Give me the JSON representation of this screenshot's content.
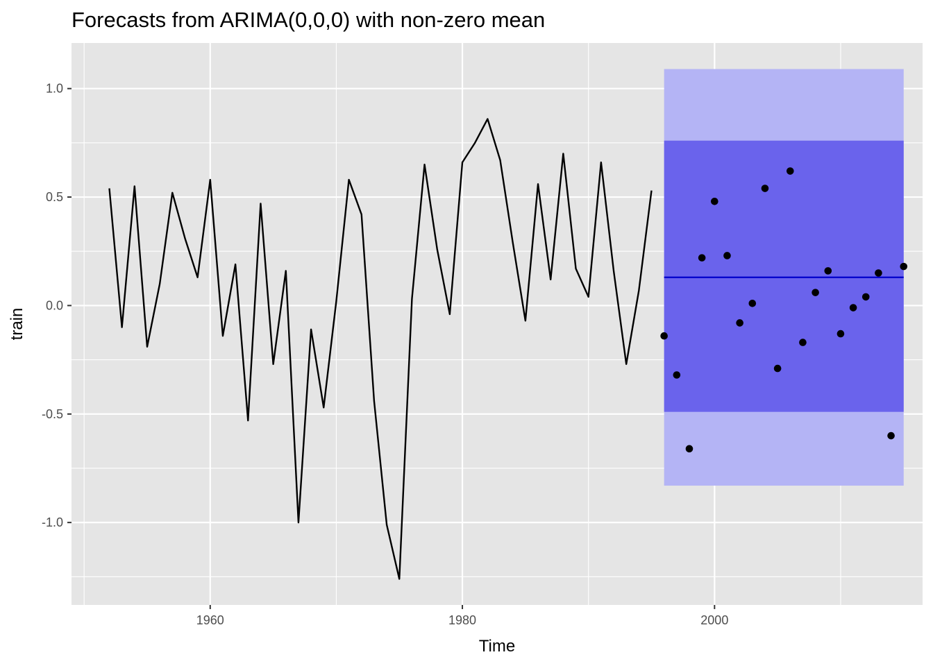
{
  "chart_data": {
    "type": "line",
    "title": "Forecasts from ARIMA(0,0,0) with non-zero mean",
    "xlabel": "Time",
    "ylabel": "train",
    "xlim": [
      1949,
      2016.5
    ],
    "ylim": [
      -1.38,
      1.21
    ],
    "x_ticks": [
      {
        "value": 1960,
        "label": "1960"
      },
      {
        "value": 1980,
        "label": "1980"
      },
      {
        "value": 2000,
        "label": "2000"
      }
    ],
    "x_minor_ticks": [
      1950,
      1970,
      1990,
      2010
    ],
    "y_ticks": [
      {
        "value": -1.0,
        "label": "-1.0"
      },
      {
        "value": -0.5,
        "label": "-0.5"
      },
      {
        "value": 0.0,
        "label": "0.0"
      },
      {
        "value": 0.5,
        "label": "0.5"
      },
      {
        "value": 1.0,
        "label": "1.0"
      }
    ],
    "y_minor_ticks": [
      -1.25,
      -0.75,
      -0.25,
      0.25,
      0.75
    ],
    "grid": true,
    "legend": "none",
    "colors": {
      "panel": "#e5e5e5",
      "grid": "#ffffff",
      "series_line": "#000000",
      "band_95": "#b4b4f5",
      "band_80": "#6a63ec",
      "mean_line": "#0000cc",
      "points": "#000000"
    },
    "history": {
      "x": [
        1952,
        1953,
        1954,
        1955,
        1956,
        1957,
        1958,
        1959,
        1960,
        1961,
        1962,
        1963,
        1964,
        1965,
        1966,
        1967,
        1968,
        1969,
        1970,
        1971,
        1972,
        1973,
        1974,
        1975,
        1976,
        1977,
        1978,
        1979,
        1980,
        1981,
        1982,
        1983,
        1984,
        1985,
        1986,
        1987,
        1988,
        1989,
        1990,
        1991,
        1992,
        1993,
        1994,
        1995
      ],
      "y": [
        0.54,
        -0.1,
        0.55,
        -0.19,
        0.1,
        0.52,
        0.31,
        0.13,
        0.58,
        -0.14,
        0.19,
        -0.53,
        0.47,
        -0.27,
        0.16,
        -1.0,
        -0.11,
        -0.47,
        0.02,
        0.58,
        0.42,
        -0.44,
        -1.01,
        -1.26,
        0.03,
        0.65,
        0.26,
        -0.04,
        0.66,
        0.75,
        0.86,
        0.67,
        0.29,
        -0.07,
        0.56,
        0.12,
        0.7,
        0.17,
        0.04,
        0.66,
        0.16,
        -0.27,
        0.07,
        0.53
      ]
    },
    "forecast": {
      "x_start": 1996,
      "x_end": 2015,
      "mean": 0.13,
      "lo80": -0.49,
      "hi80": 0.76,
      "lo95": -0.83,
      "hi95": 1.09
    },
    "test": {
      "x": [
        1996,
        1997,
        1998,
        1999,
        2000,
        2001,
        2002,
        2003,
        2004,
        2005,
        2006,
        2007,
        2008,
        2009,
        2010,
        2011,
        2012,
        2013,
        2014,
        2015
      ],
      "y": [
        -0.14,
        -0.32,
        -0.66,
        0.22,
        0.48,
        0.23,
        -0.08,
        0.01,
        0.54,
        -0.29,
        0.62,
        -0.17,
        0.06,
        0.16,
        -0.13,
        -0.01,
        0.04,
        0.15,
        -0.6,
        0.18
      ]
    }
  }
}
